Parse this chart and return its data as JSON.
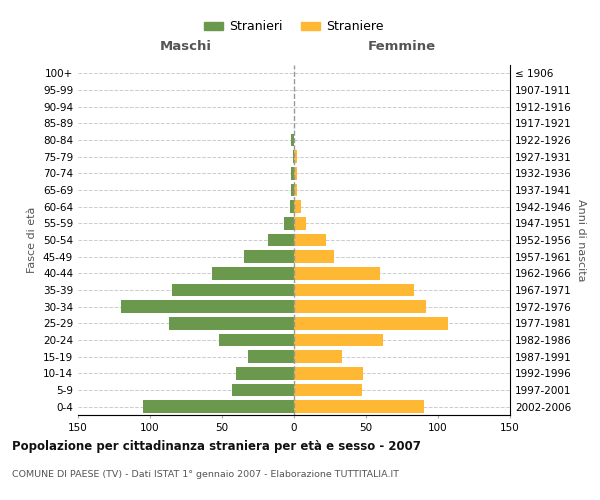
{
  "age_groups": [
    "0-4",
    "5-9",
    "10-14",
    "15-19",
    "20-24",
    "25-29",
    "30-34",
    "35-39",
    "40-44",
    "45-49",
    "50-54",
    "55-59",
    "60-64",
    "65-69",
    "70-74",
    "75-79",
    "80-84",
    "85-89",
    "90-94",
    "95-99",
    "100+"
  ],
  "birth_years": [
    "2002-2006",
    "1997-2001",
    "1992-1996",
    "1987-1991",
    "1982-1986",
    "1977-1981",
    "1972-1976",
    "1967-1971",
    "1962-1966",
    "1957-1961",
    "1952-1956",
    "1947-1951",
    "1942-1946",
    "1937-1941",
    "1932-1936",
    "1927-1931",
    "1922-1926",
    "1917-1921",
    "1912-1916",
    "1907-1911",
    "≤ 1906"
  ],
  "males": [
    105,
    43,
    40,
    32,
    52,
    87,
    120,
    85,
    57,
    35,
    18,
    7,
    3,
    2,
    2,
    1,
    2,
    0,
    0,
    0,
    0
  ],
  "females": [
    90,
    47,
    48,
    33,
    62,
    107,
    92,
    83,
    60,
    28,
    22,
    8,
    5,
    2,
    2,
    2,
    0,
    0,
    0,
    0,
    0
  ],
  "male_color": "#6a994e",
  "female_color": "#ffb833",
  "center_line_color": "#999999",
  "title": "Popolazione per cittadinanza straniera per età e sesso - 2007",
  "subtitle": "COMUNE DI PAESE (TV) - Dati ISTAT 1° gennaio 2007 - Elaborazione TUTTITALIA.IT",
  "xlabel_left": "Maschi",
  "xlabel_right": "Femmine",
  "ylabel_left": "Fasce di età",
  "ylabel_right": "Anni di nascita",
  "legend_male": "Stranieri",
  "legend_female": "Straniere",
  "xlim": 150,
  "background_color": "#ffffff",
  "grid_color": "#cccccc"
}
